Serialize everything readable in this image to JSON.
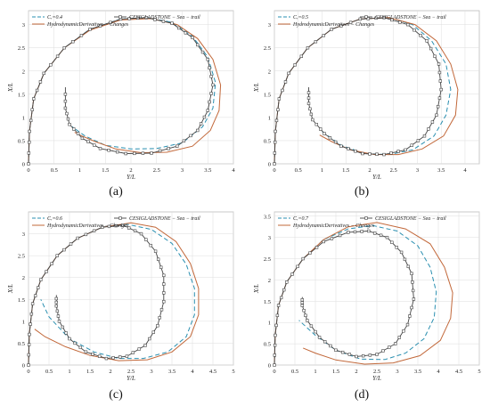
{
  "colors": {
    "dashed": "#2a8fb0",
    "solid": "#c2683a",
    "marker": "#444444",
    "grid": "#dddddd",
    "axis": "#555555"
  },
  "chart_data": [
    {
      "type": "line",
      "caption": "(a)",
      "xlabel": "Y/L",
      "ylabel": "X/L",
      "xlim": [
        0,
        4
      ],
      "ylim": [
        0,
        3.3
      ],
      "xticks": [
        "0",
        "0.5",
        "1",
        "1.5",
        "2",
        "2.5",
        "3",
        "3.5",
        "4"
      ],
      "yticks": [
        "0",
        "0.5",
        "1",
        "1.5",
        "2",
        "2.5",
        "3"
      ],
      "legend": [
        "Cᵣ=0.4",
        "CESIGLADSTONE − Sea − trail",
        "HydrodynamicDerivatives − Changes"
      ],
      "series": [
        {
          "style": "dashed",
          "x": [
            0,
            0.02,
            0.1,
            0.3,
            0.7,
            1.2,
            1.8,
            2.3,
            2.8,
            3.2,
            3.5,
            3.65,
            3.6,
            3.4,
            3.0,
            2.5,
            2.0,
            1.5,
            1.1,
            0.85
          ],
          "y": [
            0,
            0.7,
            1.4,
            1.95,
            2.5,
            2.9,
            3.12,
            3.15,
            3.05,
            2.75,
            2.3,
            1.75,
            1.2,
            0.8,
            0.45,
            0.33,
            0.32,
            0.4,
            0.6,
            0.8
          ]
        },
        {
          "style": "solid",
          "x": [
            0,
            0.02,
            0.1,
            0.3,
            0.7,
            1.2,
            1.8,
            2.4,
            2.9,
            3.3,
            3.6,
            3.75,
            3.72,
            3.55,
            3.2,
            2.7,
            2.2,
            1.7,
            1.3,
            1.0,
            0.9
          ],
          "y": [
            0,
            0.7,
            1.4,
            1.95,
            2.5,
            2.88,
            3.1,
            3.13,
            3.0,
            2.7,
            2.25,
            1.7,
            1.15,
            0.72,
            0.38,
            0.25,
            0.24,
            0.32,
            0.48,
            0.62,
            0.68
          ]
        },
        {
          "style": "marker",
          "x": [
            0,
            0.02,
            0.1,
            0.3,
            0.7,
            1.2,
            1.8,
            2.3,
            2.8,
            3.2,
            3.5,
            3.6,
            3.5,
            3.3,
            2.9,
            2.4,
            1.9,
            1.4,
            1.05,
            0.8,
            0.72,
            0.72
          ],
          "y": [
            0,
            0.7,
            1.4,
            1.95,
            2.5,
            2.9,
            3.12,
            3.15,
            3.03,
            2.72,
            2.25,
            1.7,
            1.15,
            0.72,
            0.38,
            0.23,
            0.22,
            0.33,
            0.55,
            0.85,
            1.2,
            1.65
          ]
        }
      ]
    },
    {
      "type": "line",
      "caption": "(b)",
      "xlabel": "Y/L",
      "ylabel": "X/L",
      "xlim": [
        0,
        4.3
      ],
      "ylim": [
        0,
        3.3
      ],
      "xticks": [
        "0",
        "0.5",
        "1",
        "1.5",
        "2",
        "2.5",
        "3",
        "3.5",
        "4"
      ],
      "yticks": [
        "0",
        "0.5",
        "1",
        "1.5",
        "2",
        "2.5",
        "3"
      ],
      "legend": [
        "Cᵣ=0.5",
        "CESIGLADSTONE − Sea − trail",
        "HydrodynamicDerivatives − Changes"
      ],
      "series": [
        {
          "style": "dashed",
          "x": [
            0,
            0.02,
            0.1,
            0.3,
            0.7,
            1.2,
            1.8,
            2.4,
            2.9,
            3.3,
            3.6,
            3.7,
            3.6,
            3.35,
            2.9,
            2.4,
            1.9,
            1.4,
            1.0
          ],
          "y": [
            0,
            0.7,
            1.4,
            1.95,
            2.5,
            2.9,
            3.12,
            3.15,
            3.0,
            2.65,
            2.15,
            1.6,
            1.05,
            0.6,
            0.3,
            0.2,
            0.22,
            0.4,
            0.7
          ]
        },
        {
          "style": "solid",
          "x": [
            0,
            0.02,
            0.1,
            0.3,
            0.7,
            1.2,
            1.8,
            2.4,
            2.95,
            3.4,
            3.7,
            3.85,
            3.8,
            3.55,
            3.1,
            2.6,
            2.1,
            1.6,
            1.2,
            0.95
          ],
          "y": [
            0,
            0.7,
            1.4,
            1.95,
            2.5,
            2.9,
            3.12,
            3.15,
            3.0,
            2.65,
            2.15,
            1.6,
            1.05,
            0.6,
            0.32,
            0.2,
            0.2,
            0.3,
            0.48,
            0.62
          ]
        },
        {
          "style": "marker",
          "x": [
            0,
            0.02,
            0.1,
            0.3,
            0.7,
            1.2,
            1.8,
            2.3,
            2.8,
            3.2,
            3.45,
            3.5,
            3.4,
            3.15,
            2.75,
            2.3,
            1.85,
            1.4,
            1.05,
            0.8,
            0.72,
            0.72
          ],
          "y": [
            0,
            0.7,
            1.4,
            1.95,
            2.5,
            2.9,
            3.12,
            3.15,
            3.0,
            2.65,
            2.15,
            1.6,
            1.05,
            0.6,
            0.3,
            0.2,
            0.22,
            0.38,
            0.65,
            0.95,
            1.3,
            1.65
          ]
        }
      ]
    },
    {
      "type": "line",
      "caption": "(c)",
      "xlabel": "Y/L",
      "ylabel": "X/L",
      "xlim": [
        0,
        5
      ],
      "ylim": [
        0,
        3.5
      ],
      "xticks": [
        "0",
        "0.5",
        "1",
        "1.5",
        "2",
        "2.5",
        "3",
        "3.5",
        "4",
        "4.5",
        "5"
      ],
      "yticks": [
        "0",
        "0.5",
        "1",
        "1.5",
        "2",
        "2.5",
        "3"
      ],
      "legend": [
        "Cᵣ=0.6",
        "CESIGLADSTONE − Sea − trail",
        "HydrodynamicDerivatives − Changes"
      ],
      "series": [
        {
          "style": "dashed",
          "x": [
            0,
            0.02,
            0.1,
            0.3,
            0.7,
            1.2,
            1.8,
            2.4,
            3.0,
            3.5,
            3.85,
            4.05,
            4.05,
            3.85,
            3.4,
            2.8,
            2.2,
            1.6,
            1.0,
            0.5,
            0.3
          ],
          "y": [
            0,
            0.7,
            1.4,
            1.95,
            2.5,
            2.9,
            3.15,
            3.22,
            3.1,
            2.78,
            2.3,
            1.75,
            1.15,
            0.65,
            0.3,
            0.15,
            0.15,
            0.3,
            0.6,
            1.1,
            1.5
          ]
        },
        {
          "style": "solid",
          "x": [
            0,
            0.02,
            0.1,
            0.3,
            0.7,
            1.2,
            1.8,
            2.5,
            3.1,
            3.6,
            3.95,
            4.15,
            4.15,
            3.95,
            3.5,
            2.9,
            2.2,
            1.5,
            0.9,
            0.4,
            0.15
          ],
          "y": [
            0,
            0.7,
            1.4,
            1.95,
            2.5,
            2.9,
            3.15,
            3.25,
            3.15,
            2.82,
            2.32,
            1.75,
            1.15,
            0.65,
            0.3,
            0.12,
            0.1,
            0.22,
            0.42,
            0.65,
            0.82
          ]
        },
        {
          "style": "marker",
          "x": [
            0,
            0.02,
            0.1,
            0.3,
            0.7,
            1.2,
            1.8,
            2.3,
            2.75,
            3.1,
            3.3,
            3.3,
            3.15,
            2.85,
            2.4,
            1.9,
            1.4,
            1.0,
            0.75,
            0.68,
            0.68
          ],
          "y": [
            0,
            0.7,
            1.4,
            1.95,
            2.5,
            2.9,
            3.15,
            3.2,
            3.0,
            2.6,
            2.05,
            1.45,
            0.9,
            0.45,
            0.2,
            0.15,
            0.3,
            0.6,
            1.0,
            1.35,
            1.6
          ]
        }
      ]
    },
    {
      "type": "line",
      "caption": "(d)",
      "xlabel": "Y/L",
      "ylabel": "X/L",
      "xlim": [
        0,
        5
      ],
      "ylim": [
        0,
        3.6
      ],
      "xticks": [
        "0",
        "0.5",
        "1",
        "1.5",
        "2",
        "2.5",
        "3",
        "3.5",
        "4",
        "4.5",
        "5"
      ],
      "yticks": [
        "0",
        "0.5",
        "1",
        "1.5",
        "2",
        "2.5",
        "3",
        "3.5"
      ],
      "legend": [
        "Cᵣ=0.7",
        "CESIGLADSTONE − Sea − trail",
        "HydrodynamicDerivatives − Changes"
      ],
      "series": [
        {
          "style": "dashed",
          "x": [
            0,
            0.02,
            0.1,
            0.3,
            0.7,
            1.2,
            1.8,
            2.4,
            3.0,
            3.5,
            3.8,
            3.95,
            3.9,
            3.65,
            3.2,
            2.7,
            2.1,
            1.5,
            1.0,
            0.6
          ],
          "y": [
            0,
            0.7,
            1.4,
            1.95,
            2.5,
            2.95,
            3.2,
            3.28,
            3.15,
            2.8,
            2.3,
            1.72,
            1.12,
            0.62,
            0.28,
            0.13,
            0.14,
            0.35,
            0.7,
            1.05
          ]
        },
        {
          "style": "solid",
          "x": [
            0,
            0.02,
            0.1,
            0.3,
            0.7,
            1.2,
            1.8,
            2.5,
            3.2,
            3.8,
            4.15,
            4.35,
            4.3,
            4.05,
            3.55,
            2.9,
            2.2,
            1.5,
            1.0,
            0.7
          ],
          "y": [
            0,
            0.7,
            1.4,
            1.95,
            2.5,
            2.95,
            3.25,
            3.35,
            3.2,
            2.85,
            2.3,
            1.7,
            1.1,
            0.58,
            0.22,
            0.05,
            0.02,
            0.12,
            0.28,
            0.4
          ]
        },
        {
          "style": "marker",
          "x": [
            0,
            0.02,
            0.1,
            0.3,
            0.7,
            1.2,
            1.8,
            2.3,
            2.75,
            3.1,
            3.35,
            3.4,
            3.25,
            2.95,
            2.5,
            2.0,
            1.5,
            1.1,
            0.8,
            0.68,
            0.68
          ],
          "y": [
            0,
            0.7,
            1.4,
            1.95,
            2.5,
            2.9,
            3.12,
            3.15,
            3.0,
            2.65,
            2.15,
            1.55,
            0.95,
            0.5,
            0.25,
            0.2,
            0.35,
            0.65,
            1.05,
            1.4,
            1.6
          ]
        }
      ]
    }
  ]
}
